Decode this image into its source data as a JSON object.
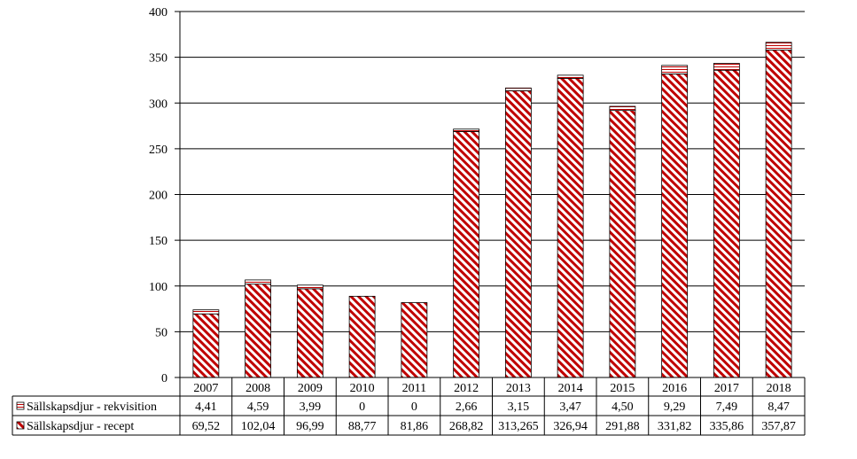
{
  "chart_data": {
    "type": "bar",
    "stacked": true,
    "categories": [
      "2007",
      "2008",
      "2009",
      "2010",
      "2011",
      "2012",
      "2013",
      "2014",
      "2015",
      "2016",
      "2017",
      "2018"
    ],
    "series": [
      {
        "name": "Sällskapsdjur - recept",
        "values": [
          69.52,
          102.04,
          96.99,
          88.77,
          81.86,
          268.82,
          313.265,
          326.94,
          291.88,
          331.82,
          335.86,
          357.87
        ],
        "labels": [
          "69,52",
          "102,04",
          "96,99",
          "88,77",
          "81,86",
          "268,82",
          "313,265",
          "326,94",
          "291,88",
          "331,82",
          "335,86",
          "357,87"
        ],
        "fill": "diagonal-hatch",
        "color": "#c00000"
      },
      {
        "name": "Sällskapsdjur - rekvisition",
        "values": [
          4.41,
          4.59,
          3.99,
          0,
          0,
          2.66,
          3.15,
          3.47,
          4.5,
          9.29,
          7.49,
          8.47
        ],
        "labels": [
          "4,41",
          "4,59",
          "3,99",
          "0",
          "0",
          "2,66",
          "3,15",
          "3,47",
          "4,50",
          "9,29",
          "7,49",
          "8,47"
        ],
        "fill": "horizontal-lines",
        "color": "#c00000"
      }
    ],
    "y_ticks": [
      "0",
      "50",
      "100",
      "150",
      "200",
      "250",
      "300",
      "350",
      "400"
    ],
    "ylim": [
      0,
      400
    ],
    "grid": true,
    "legend": "data-table-below"
  }
}
